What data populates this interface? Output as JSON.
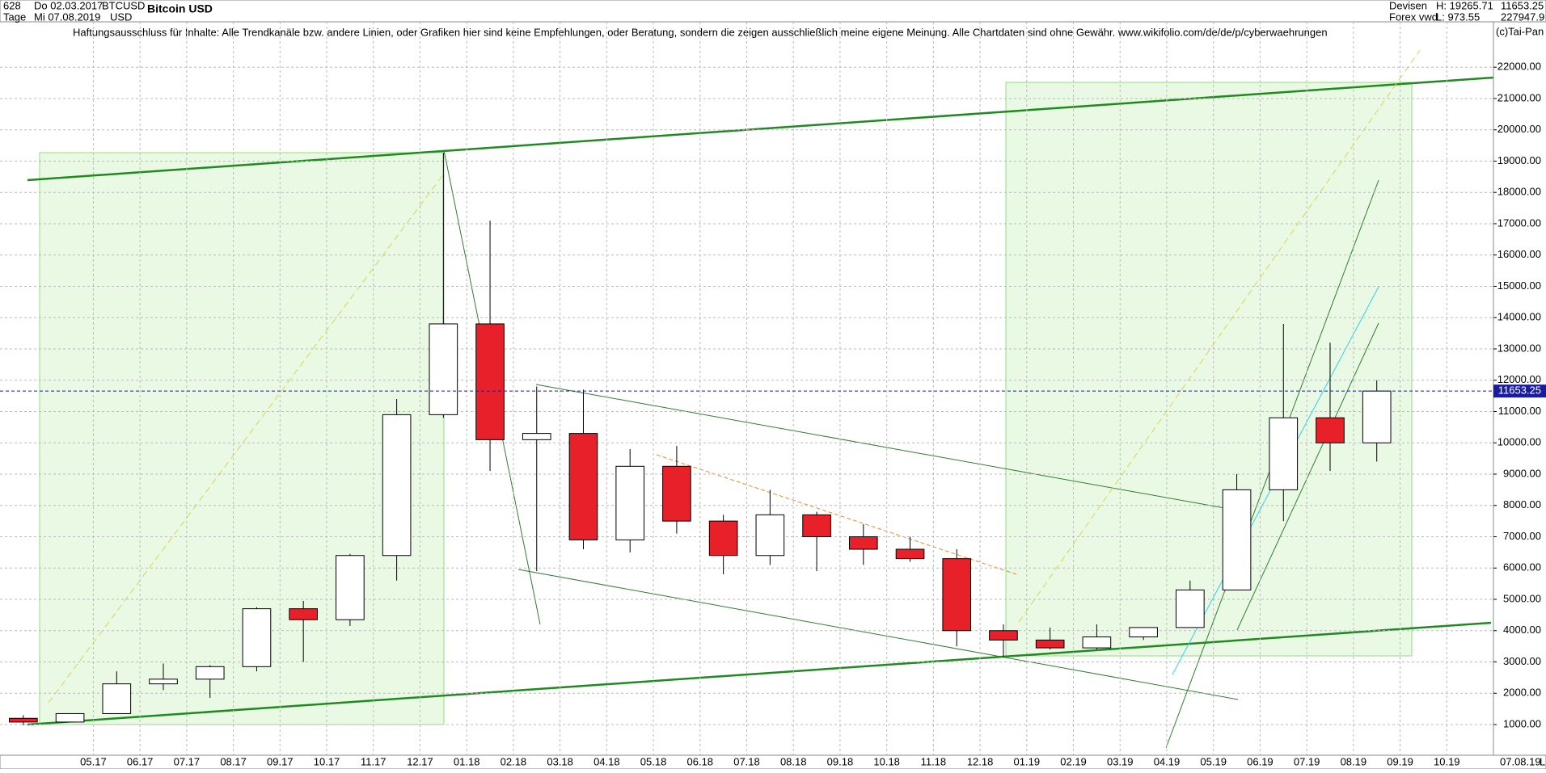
{
  "header": {
    "count": "628",
    "timeframe": "Tage",
    "start_date": "Do 02.03.2017",
    "end_date": "Mi 07.08.2019",
    "symbol": "BTCUSD",
    "currency": "USD",
    "market": "Devisen",
    "source": "Forex vwd",
    "high_label": "H: 19265.71",
    "low_label": "L: 973.55",
    "price": "11653.25",
    "volume": "227947.9",
    "copyright": "(c)Tai-Pan",
    "end_label": "07.08.19",
    "scale_mode": "L"
  },
  "chart_data": {
    "type": "candlestick",
    "title": "Bitcoin USD",
    "annotation": "Haftungsausschluss für Inhalte: Alle Trendkanäle bzw. andere Linien, oder Grafiken hier sind keine Empfehlungen, oder Beratung, sondern die zeigen ausschließlich meine eigene Meinung. Alle Chartdaten sind ohne Gewähr.  www.wikifolio.com/de/de/p/cyberwaehrungen",
    "categories": [
      null,
      null,
      "05.17",
      "06.17",
      "07.17",
      "08.17",
      "09.17",
      "10.17",
      "11.17",
      "12.17",
      "01.18",
      "02.18",
      "03.18",
      "04.18",
      "05.18",
      "06.18",
      "07.18",
      "08.18",
      "09.18",
      "10.18",
      "11.18",
      "12.18",
      "01.19",
      "02.19",
      "03.19",
      "04.19",
      "05.19",
      "06.19",
      "07.19",
      "08.19",
      "09.19",
      "10.19"
    ],
    "open": [
      1200,
      1080,
      1350,
      2300,
      2450,
      2850,
      4700,
      4350,
      6400,
      10900,
      13800,
      10100,
      10300,
      6900,
      9250,
      7500,
      6400,
      7700,
      7000,
      6600,
      6300,
      4000,
      3700,
      3450,
      3800,
      4100,
      5300,
      8500,
      10800,
      10000,
      null,
      null
    ],
    "high": [
      1300,
      1350,
      2700,
      2950,
      2900,
      4750,
      4950,
      6450,
      11400,
      19266,
      17100,
      11800,
      11700,
      9800,
      9900,
      7700,
      8500,
      7800,
      7400,
      7000,
      6600,
      4200,
      4100,
      4200,
      4100,
      5600,
      9000,
      13800,
      13200,
      12000,
      null,
      null
    ],
    "low": [
      974,
      1080,
      1350,
      2100,
      1850,
      2700,
      3000,
      4150,
      5600,
      10800,
      9100,
      5900,
      6600,
      6500,
      7100,
      5800,
      6100,
      5900,
      6100,
      6200,
      3500,
      3150,
      3400,
      3400,
      3700,
      4100,
      5300,
      7500,
      9100,
      9400,
      null,
      null
    ],
    "close": [
      1080,
      1350,
      2300,
      2450,
      2850,
      4700,
      4350,
      6400,
      10900,
      13800,
      10100,
      10300,
      6900,
      9250,
      7500,
      6400,
      7700,
      7000,
      6600,
      6300,
      4000,
      3700,
      3450,
      3800,
      4100,
      5300,
      8500,
      10800,
      10000,
      11653.25,
      null,
      null
    ],
    "up_color": "#ffffff",
    "down_color": "#e8202a",
    "outline_color": "#000000",
    "last_price": 11653.25,
    "last_price_color": "#1a1aa8",
    "ylim": [
      20,
      23450
    ],
    "yticks": [
      {
        "value": 1000,
        "label": "1000.00"
      },
      {
        "value": 2000,
        "label": "2000.00"
      },
      {
        "value": 3000,
        "label": "3000.00"
      },
      {
        "value": 4000,
        "label": "4000.00"
      },
      {
        "value": 5000,
        "label": "5000.00"
      },
      {
        "value": 6000,
        "label": "6000.00"
      },
      {
        "value": 7000,
        "label": "7000.00"
      },
      {
        "value": 8000,
        "label": "8000.00"
      },
      {
        "value": 9000,
        "label": "9000.00"
      },
      {
        "value": 10000,
        "label": "10000.00"
      },
      {
        "value": 11000,
        "label": "11000.00"
      },
      {
        "value": 12000,
        "label": "12000.00"
      },
      {
        "value": 13000,
        "label": "13000.00"
      },
      {
        "value": 14000,
        "label": "14000.00"
      },
      {
        "value": 15000,
        "label": "15000.00"
      },
      {
        "value": 16000,
        "label": "16000.00"
      },
      {
        "value": 17000,
        "label": "17000.00"
      },
      {
        "value": 18000,
        "label": "18000.00"
      },
      {
        "value": 19000,
        "label": "19000.00"
      },
      {
        "value": 20000,
        "label": "20000.00"
      },
      {
        "value": 21000,
        "label": "21000.00"
      },
      {
        "value": 22000,
        "label": "22000.00"
      }
    ],
    "grid": true
  }
}
